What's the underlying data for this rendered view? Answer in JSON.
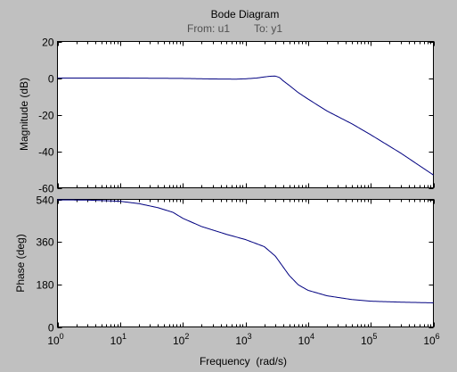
{
  "chart_data": {
    "type": "line",
    "title": "Bode Diagram",
    "subtitle": {
      "from_label": "From: u1",
      "to_label": "To: y1"
    },
    "xlabel": "Frequency  (rad/s)",
    "xscale": "log",
    "xlim": [
      1,
      1000000
    ],
    "x_ticks": [
      {
        "base": "10",
        "exp": "0"
      },
      {
        "base": "10",
        "exp": "1"
      },
      {
        "base": "10",
        "exp": "2"
      },
      {
        "base": "10",
        "exp": "3"
      },
      {
        "base": "10",
        "exp": "4"
      },
      {
        "base": "10",
        "exp": "5"
      },
      {
        "base": "10",
        "exp": "6"
      }
    ],
    "grid": false,
    "magnitude": {
      "ylabel": "Magnitude (dB)",
      "ylim": [
        -60,
        20
      ],
      "y_ticks": [
        "20",
        "0",
        "-20",
        "-40",
        "-60"
      ],
      "x": [
        1,
        10,
        100,
        300,
        700,
        1000,
        1500,
        2000,
        2500,
        3000,
        3500,
        4000,
        5000,
        7000,
        10000,
        20000,
        50000,
        100000,
        300000,
        1000000
      ],
      "y": [
        0,
        0,
        -0.2,
        -0.5,
        -0.6,
        -0.4,
        0,
        0.6,
        1.0,
        1.1,
        0.3,
        -1.5,
        -4,
        -8,
        -11.5,
        -18,
        -25,
        -31,
        -41,
        -53
      ]
    },
    "phase": {
      "ylabel": "Phase (deg)",
      "ylim": [
        0,
        540
      ],
      "y_ticks": [
        "540",
        "360",
        "180",
        "0"
      ],
      "x": [
        1,
        3,
        10,
        20,
        40,
        70,
        100,
        200,
        500,
        1000,
        2000,
        3000,
        5000,
        7000,
        10000,
        20000,
        50000,
        100000,
        300000,
        1000000
      ],
      "y": [
        538,
        537,
        532,
        522,
        505,
        485,
        460,
        425,
        392,
        370,
        340,
        300,
        218,
        178,
        155,
        132,
        116,
        109,
        105,
        102
      ]
    }
  }
}
